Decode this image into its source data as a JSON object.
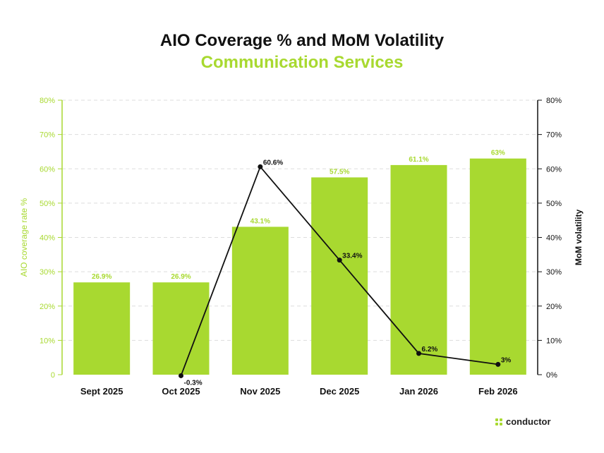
{
  "chart_data": {
    "type": "bar",
    "title": "AIO Coverage % and MoM Volatility",
    "subtitle": "Communication Services",
    "categories": [
      "Sept 2025",
      "Oct 2025",
      "Nov 2025",
      "Dec 2025",
      "Jan 2026",
      "Feb 2026"
    ],
    "series": [
      {
        "kind": "bar",
        "axis": "left",
        "values": [
          26.9,
          26.9,
          43.1,
          57.5,
          61.1,
          63
        ],
        "labels": [
          "26.9%",
          "26.9%",
          "43.1%",
          "57.5%",
          "61.1%",
          "63%"
        ]
      },
      {
        "kind": "line",
        "axis": "right",
        "values": [
          null,
          -0.3,
          60.6,
          33.4,
          6.2,
          3
        ],
        "labels": [
          "",
          "-0.3%",
          "60.6%",
          "33.4%",
          "6.2%",
          "3%"
        ]
      }
    ],
    "ylabel": "AIO coverage rate %",
    "y2label": "MoM volatility",
    "ylim": [
      0,
      80
    ],
    "y2lim": [
      0,
      80
    ],
    "yticks": [
      "0",
      "10%",
      "20%",
      "30%",
      "40%",
      "50%",
      "60%",
      "70%",
      "80%"
    ],
    "y2ticks": [
      "0%",
      "10%",
      "20%",
      "30%",
      "40%",
      "50%",
      "60%",
      "70%",
      "80%"
    ],
    "grid": true,
    "colors": {
      "bar": "#a8d930",
      "line": "#111111",
      "left_axis_text": "#a8d930",
      "right_axis_text": "#111111"
    }
  },
  "brand": {
    "name": "conductor"
  }
}
